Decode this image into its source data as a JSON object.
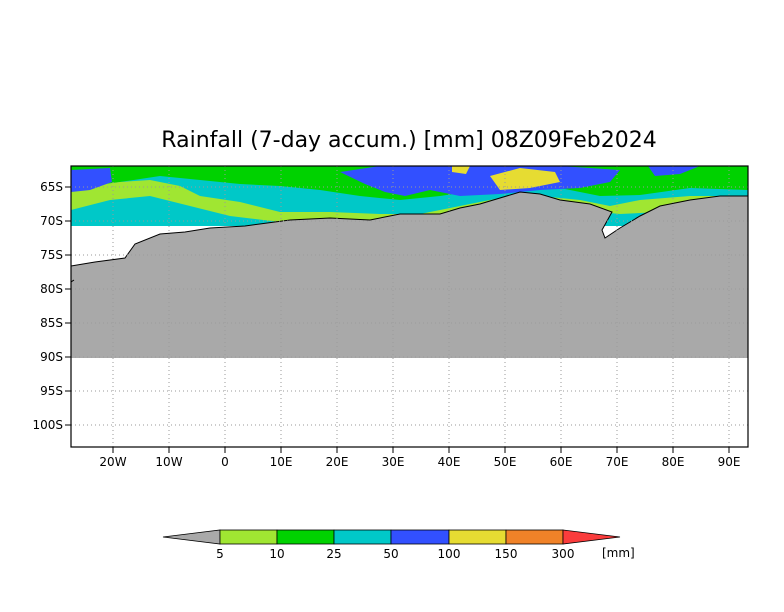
{
  "title": "Rainfall (7-day accum.) [mm] 08Z09Feb2024",
  "map": {
    "lon_labels": [
      "20W",
      "10W",
      "0",
      "10E",
      "20E",
      "30E",
      "40E",
      "50E",
      "60E",
      "70E",
      "80E",
      "90E"
    ],
    "lat_labels": [
      "65S",
      "70S",
      "75S",
      "80S",
      "85S",
      "90S",
      "95S",
      "100S"
    ],
    "land_color": "#a9a9a9",
    "grid": "dotted"
  },
  "colorbar": {
    "labels": [
      "5",
      "10",
      "25",
      "50",
      "100",
      "150",
      "300"
    ],
    "unit": "[mm]",
    "colors": [
      "#a9a9a9",
      "#a0e632",
      "#00d200",
      "#00c8c8",
      "#3250ff",
      "#e6dc32",
      "#f08228",
      "#fa3c3c"
    ]
  }
}
